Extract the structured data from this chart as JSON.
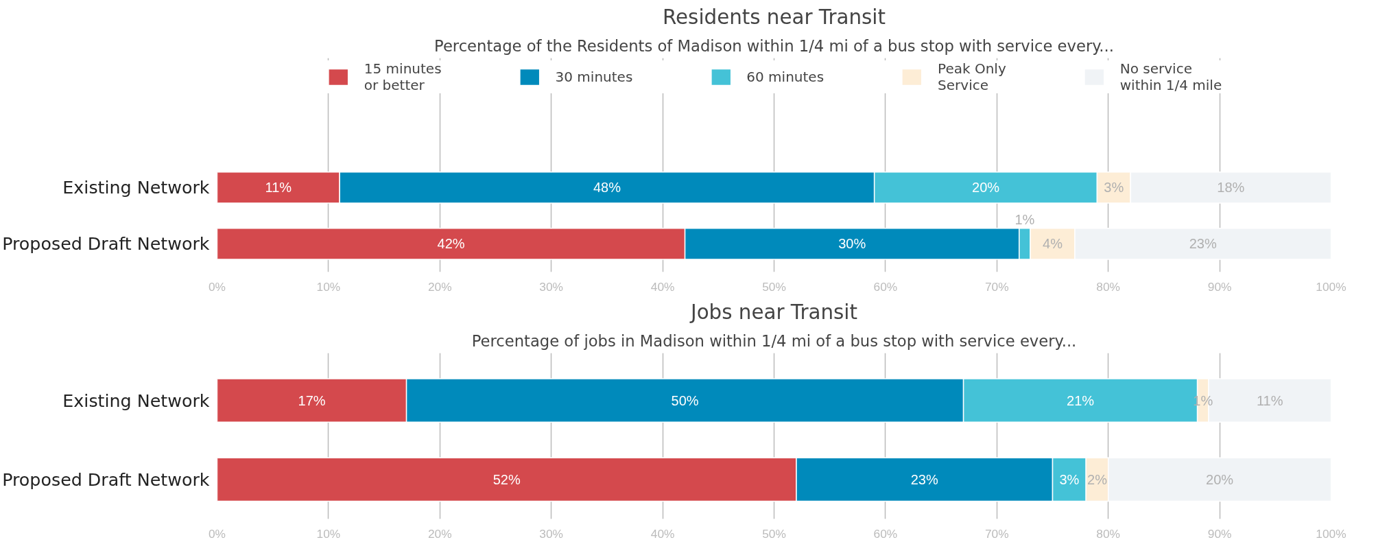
{
  "chart_data": [
    {
      "type": "bar",
      "orientation": "horizontal",
      "stacked": true,
      "title": "Residents near Transit",
      "subtitle": "Percentage of the Residents of Madison within 1/4 mi of a bus stop with service every...",
      "categories": [
        "Existing Network",
        "Proposed Draft Network"
      ],
      "series": [
        {
          "name": "15 minutes\nor better",
          "color": "#d4494d",
          "values": [
            11,
            42
          ],
          "value_labels": [
            "11%",
            "42%"
          ]
        },
        {
          "name": "30 minutes",
          "color": "#008abb",
          "values": [
            48,
            30
          ],
          "value_labels": [
            "48%",
            "30%"
          ]
        },
        {
          "name": "60 minutes",
          "color": "#44c2d7",
          "values": [
            20,
            1
          ],
          "value_labels": [
            "20%",
            "1%"
          ]
        },
        {
          "name": "Peak Only\nService",
          "color": "#fdedd6",
          "values": [
            3,
            4
          ],
          "value_labels": [
            "3%",
            "4%"
          ]
        },
        {
          "name": "No service\nwithin 1/4 mile",
          "color": "#f0f3f6",
          "values": [
            18,
            23
          ],
          "value_labels": [
            "18%",
            "23%"
          ]
        }
      ],
      "xlim": [
        0,
        100
      ],
      "xticks": [
        {
          "value": 0,
          "label": "0%"
        },
        {
          "value": 10,
          "label": "10%"
        },
        {
          "value": 20,
          "label": "20%"
        },
        {
          "value": 30,
          "label": "30%"
        },
        {
          "value": 40,
          "label": "40%"
        },
        {
          "value": 50,
          "label": "50%"
        },
        {
          "value": 60,
          "label": "60%"
        },
        {
          "value": 70,
          "label": "70%"
        },
        {
          "value": 80,
          "label": "80%"
        },
        {
          "value": 90,
          "label": "90%"
        },
        {
          "value": 100,
          "label": "100%"
        }
      ],
      "grid": "x",
      "legend": "top"
    },
    {
      "type": "bar",
      "orientation": "horizontal",
      "stacked": true,
      "title": "Jobs near Transit",
      "subtitle": "Percentage of jobs in Madison within 1/4 mi of a bus stop with service every...",
      "categories": [
        "Existing Network",
        "Proposed Draft Network"
      ],
      "series": [
        {
          "color": "#d4494d",
          "values": [
            17,
            52
          ],
          "value_labels": [
            "17%",
            "52%"
          ]
        },
        {
          "color": "#008abb",
          "values": [
            50,
            23
          ],
          "value_labels": [
            "50%",
            "23%"
          ]
        },
        {
          "color": "#44c2d7",
          "values": [
            21,
            3
          ],
          "value_labels": [
            "21%",
            "3%"
          ]
        },
        {
          "color": "#fdedd6",
          "values": [
            1,
            2
          ],
          "value_labels": [
            "1%",
            "2%"
          ]
        },
        {
          "color": "#f0f3f6",
          "values": [
            11,
            20
          ],
          "value_labels": [
            "11%",
            "20%"
          ]
        }
      ],
      "xlim": [
        0,
        100
      ],
      "xticks": [
        {
          "value": 0,
          "label": "0%"
        },
        {
          "value": 10,
          "label": "10%"
        },
        {
          "value": 20,
          "label": "20%"
        },
        {
          "value": 30,
          "label": "30%"
        },
        {
          "value": 40,
          "label": "40%"
        },
        {
          "value": 50,
          "label": "50%"
        },
        {
          "value": 60,
          "label": "60%"
        },
        {
          "value": 70,
          "label": "70%"
        },
        {
          "value": 80,
          "label": "80%"
        },
        {
          "value": 90,
          "label": "90%"
        },
        {
          "value": 100,
          "label": "100%"
        }
      ],
      "grid": "x",
      "legend": false
    }
  ]
}
